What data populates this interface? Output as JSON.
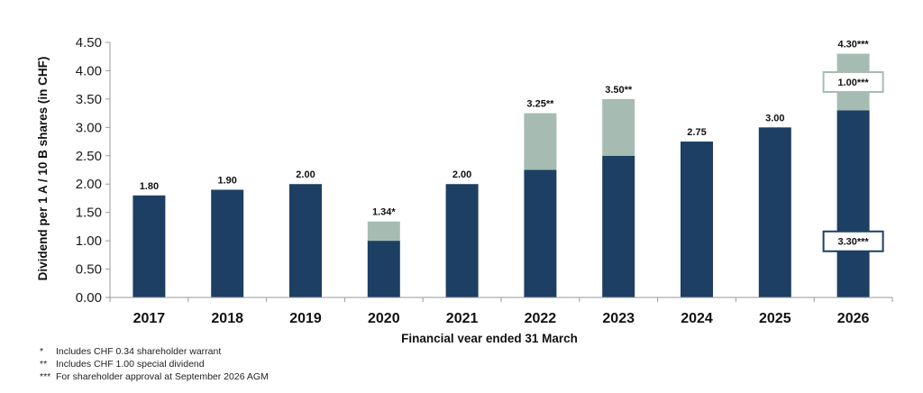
{
  "chart_data": {
    "type": "bar",
    "stacked": true,
    "ylabel": "Dividend per 1 A / 10 B shares (in CHF)",
    "xlabel": "Financial year ended 31 March",
    "ylim": [
      0,
      4.5
    ],
    "yticks": [
      "0.00",
      "0.50",
      "1.00",
      "1.50",
      "2.00",
      "2.50",
      "3.00",
      "3.50",
      "4.00",
      "4.50"
    ],
    "categories": [
      "2017",
      "2018",
      "2019",
      "2020",
      "2021",
      "2022",
      "2023",
      "2024",
      "2025",
      "2026"
    ],
    "series": [
      {
        "values": [
          1.8,
          1.9,
          2.0,
          1.0,
          2.0,
          2.25,
          2.5,
          2.75,
          3.0,
          3.3
        ]
      },
      {
        "values": [
          0,
          0,
          0,
          0.34,
          0,
          1.0,
          1.0,
          0,
          0,
          1.0
        ]
      }
    ],
    "data_labels": [
      "1.80",
      "1.90",
      "2.00",
      "1.34*",
      "2.00",
      "3.25**",
      "3.50**",
      "2.75",
      "3.00",
      "4.30***"
    ],
    "annotations": [
      {
        "category": "2026",
        "segment": 1,
        "text": "1.00***"
      },
      {
        "category": "2026",
        "segment": 0,
        "text": "3.30***"
      }
    ],
    "grid": false
  },
  "colors": {
    "base": "#1d3f63",
    "extra": "#a6bcb3",
    "box_border": "#1d3f63",
    "box_border_light": "#a6bcb3"
  },
  "footnotes": [
    {
      "mark": "*",
      "text": "Includes CHF 0.34 shareholder warrant"
    },
    {
      "mark": "**",
      "text": "Includes CHF 1.00 special dividend"
    },
    {
      "mark": "***",
      "text": "For shareholder approval at September 2026 AGM"
    }
  ]
}
